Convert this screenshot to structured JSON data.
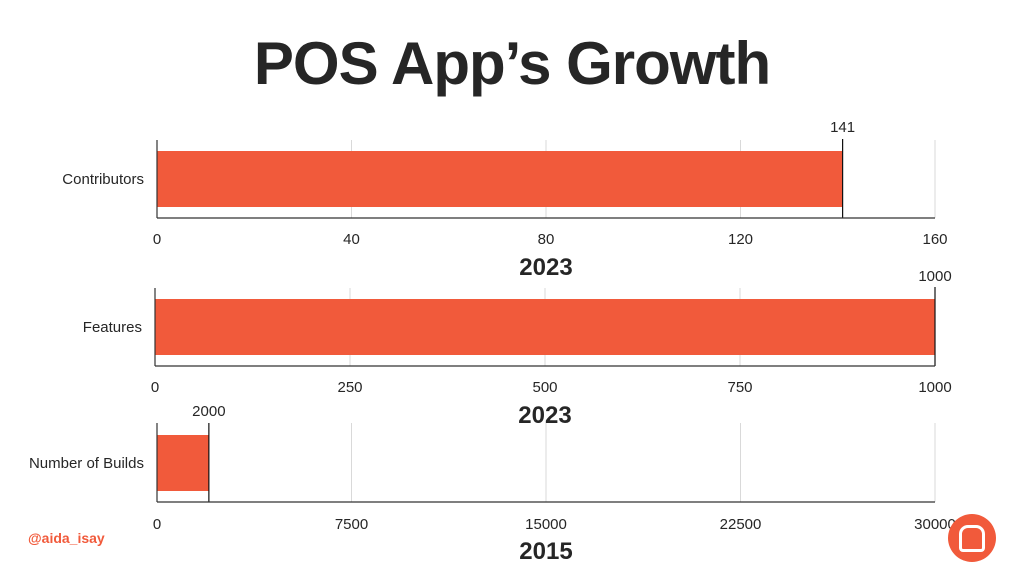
{
  "header": {
    "title": "POS App’s Growth",
    "handle": "@aida_isay"
  },
  "colors": {
    "bar": "#f15a3b",
    "text": "#262626",
    "grid": "#d9d9d9",
    "axis": "#333333",
    "accent": "#f15a3b"
  },
  "logo": {
    "icon": "chat-bubble-icon"
  },
  "chart_data": [
    {
      "type": "bar",
      "orientation": "horizontal",
      "categories": [
        "Contributors"
      ],
      "values": [
        141
      ],
      "data_labels": [
        "141"
      ],
      "xlim": [
        0,
        160
      ],
      "xticks": [
        "0",
        "40",
        "80",
        "120",
        "160"
      ],
      "xtick_values": [
        0,
        40,
        80,
        120,
        160
      ],
      "xlabel": "2023",
      "grid": true
    },
    {
      "type": "bar",
      "orientation": "horizontal",
      "categories": [
        "Features"
      ],
      "values": [
        1000
      ],
      "data_labels": [
        "1000"
      ],
      "xlim": [
        0,
        1000
      ],
      "xticks": [
        "0",
        "250",
        "500",
        "750",
        "1000"
      ],
      "xtick_values": [
        0,
        250,
        500,
        750,
        1000
      ],
      "xlabel": "2023",
      "grid": true
    },
    {
      "type": "bar",
      "orientation": "horizontal",
      "categories": [
        "Number of Builds"
      ],
      "values": [
        2000
      ],
      "data_labels": [
        "2000"
      ],
      "xlim": [
        0,
        30000
      ],
      "xticks": [
        "0",
        "7500",
        "15000",
        "22500",
        "30000"
      ],
      "xtick_values": [
        0,
        7500,
        15000,
        22500,
        30000
      ],
      "xlabel": "2015",
      "grid": true
    }
  ]
}
